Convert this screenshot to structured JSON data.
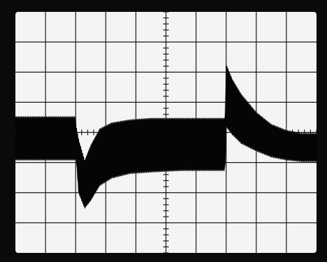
{
  "colors": {
    "screen": "#f4f4f4",
    "bezel": "#0a0a0a",
    "grid": "#1a1a1a",
    "trace": "#050505"
  },
  "chart_data": {
    "type": "line",
    "grid": true,
    "grid_divisions": {
      "x": 10,
      "y": 8
    },
    "minor_ticks_per_division": 5,
    "xlim": [
      0,
      10
    ],
    "ylim": [
      -4,
      4
    ],
    "envelope": {
      "x": [
        0,
        2.0,
        2.01,
        2.1,
        2.3,
        2.5,
        2.8,
        3.2,
        3.8,
        4.5,
        5.5,
        6.5,
        6.95,
        6.97,
        7.0,
        7.2,
        7.5,
        8.0,
        8.5,
        9.0,
        9.5,
        10
      ],
      "upper": [
        0.45,
        0.45,
        0.18,
        -0.3,
        -1.0,
        -0.5,
        0.05,
        0.25,
        0.35,
        0.4,
        0.4,
        0.4,
        0.4,
        0.6,
        2.2,
        1.7,
        1.2,
        0.6,
        0.2,
        0.0,
        -0.1,
        -0.1
      ],
      "lower": [
        -0.85,
        -0.85,
        -0.65,
        -1.95,
        -2.45,
        -2.2,
        -1.7,
        -1.45,
        -1.3,
        -1.25,
        -1.2,
        -1.2,
        -1.2,
        -0.9,
        0.25,
        0.0,
        -0.3,
        -0.55,
        -0.75,
        -0.85,
        -0.9,
        -0.9
      ]
    }
  }
}
